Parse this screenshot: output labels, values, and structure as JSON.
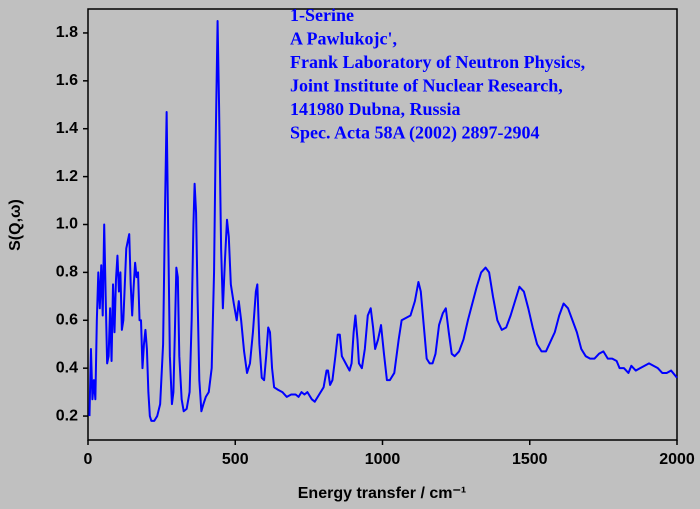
{
  "chart_data": {
    "type": "line",
    "xlabel": "Energy transfer / cm⁻¹",
    "ylabel": "S(Q,ω)",
    "annotations": [
      "1-Serine",
      "A Pawlukojc',",
      "Frank Laboratory of Neutron Physics,",
      "Joint Institute of Nuclear Research,",
      "141980 Dubna, Russia",
      "Spec. Acta 58A (2002) 2897-2904"
    ],
    "color": "#0000ff",
    "xlim": [
      0,
      2000
    ],
    "ylim": [
      0.1,
      1.9
    ],
    "xticks": [
      0,
      500,
      1000,
      1500,
      2000
    ],
    "yticks": [
      0.2,
      0.4,
      0.6,
      0.8,
      {
        "value": 1,
        "label": "1.0"
      },
      1.2,
      1.4,
      1.6,
      1.8
    ],
    "x": [
      5,
      10,
      15,
      20,
      25,
      30,
      35,
      40,
      45,
      50,
      55,
      60,
      65,
      70,
      75,
      80,
      85,
      90,
      95,
      100,
      105,
      110,
      115,
      120,
      125,
      130,
      135,
      140,
      145,
      150,
      155,
      160,
      165,
      170,
      175,
      180,
      185,
      190,
      195,
      200,
      205,
      210,
      215,
      225,
      235,
      245,
      255,
      262,
      267,
      272,
      278,
      285,
      290,
      295,
      300,
      305,
      310,
      318,
      325,
      335,
      345,
      352,
      358,
      362,
      367,
      372,
      378,
      385,
      392,
      400,
      410,
      420,
      428,
      433,
      440,
      445,
      452,
      458,
      465,
      472,
      478,
      485,
      495,
      505,
      512,
      520,
      530,
      540,
      550,
      560,
      570,
      575,
      582,
      590,
      598,
      605,
      612,
      618,
      625,
      632,
      645,
      660,
      675,
      690,
      705,
      715,
      725,
      735,
      745,
      760,
      770,
      785,
      800,
      810,
      815,
      822,
      830,
      840,
      848,
      855,
      862,
      875,
      888,
      895,
      902,
      908,
      915,
      920,
      930,
      940,
      950,
      960,
      968,
      975,
      985,
      995,
      1005,
      1015,
      1025,
      1040,
      1055,
      1065,
      1080,
      1095,
      1110,
      1122,
      1130,
      1140,
      1150,
      1160,
      1170,
      1180,
      1192,
      1205,
      1215,
      1225,
      1235,
      1245,
      1260,
      1275,
      1290,
      1305,
      1320,
      1335,
      1350,
      1362,
      1375,
      1390,
      1405,
      1420,
      1435,
      1450,
      1465,
      1480,
      1495,
      1510,
      1525,
      1540,
      1555,
      1570,
      1585,
      1600,
      1615,
      1630,
      1645,
      1660,
      1675,
      1690,
      1705,
      1720,
      1735,
      1750,
      1765,
      1780,
      1795,
      1805,
      1820,
      1835,
      1845,
      1860,
      1875,
      1890,
      1905,
      1920,
      1935,
      1950,
      1965,
      1980,
      2000
    ],
    "values": [
      0.2,
      0.48,
      0.27,
      0.35,
      0.27,
      0.6,
      0.8,
      0.65,
      0.83,
      0.62,
      1.0,
      0.7,
      0.42,
      0.45,
      0.65,
      0.43,
      0.75,
      0.55,
      0.77,
      0.87,
      0.72,
      0.8,
      0.56,
      0.6,
      0.75,
      0.9,
      0.93,
      0.96,
      0.75,
      0.62,
      0.74,
      0.84,
      0.78,
      0.8,
      0.6,
      0.6,
      0.4,
      0.5,
      0.56,
      0.48,
      0.3,
      0.2,
      0.18,
      0.18,
      0.2,
      0.25,
      0.5,
      1.1,
      1.47,
      1.0,
      0.45,
      0.25,
      0.3,
      0.55,
      0.82,
      0.78,
      0.45,
      0.27,
      0.22,
      0.23,
      0.3,
      0.6,
      1.0,
      1.17,
      1.05,
      0.7,
      0.35,
      0.22,
      0.25,
      0.28,
      0.3,
      0.4,
      0.8,
      1.3,
      1.85,
      1.5,
      0.9,
      0.65,
      0.85,
      1.02,
      0.95,
      0.75,
      0.67,
      0.6,
      0.68,
      0.6,
      0.47,
      0.38,
      0.42,
      0.55,
      0.72,
      0.75,
      0.5,
      0.36,
      0.35,
      0.45,
      0.57,
      0.55,
      0.4,
      0.32,
      0.31,
      0.3,
      0.28,
      0.29,
      0.29,
      0.28,
      0.3,
      0.29,
      0.3,
      0.27,
      0.26,
      0.29,
      0.32,
      0.39,
      0.39,
      0.33,
      0.35,
      0.45,
      0.54,
      0.54,
      0.45,
      0.42,
      0.39,
      0.42,
      0.55,
      0.62,
      0.52,
      0.42,
      0.4,
      0.48,
      0.62,
      0.65,
      0.57,
      0.48,
      0.52,
      0.58,
      0.46,
      0.35,
      0.35,
      0.38,
      0.52,
      0.6,
      0.61,
      0.62,
      0.68,
      0.76,
      0.72,
      0.58,
      0.44,
      0.42,
      0.42,
      0.46,
      0.58,
      0.63,
      0.65,
      0.55,
      0.46,
      0.45,
      0.47,
      0.52,
      0.6,
      0.67,
      0.74,
      0.8,
      0.82,
      0.8,
      0.7,
      0.6,
      0.56,
      0.57,
      0.62,
      0.68,
      0.74,
      0.72,
      0.65,
      0.57,
      0.5,
      0.47,
      0.47,
      0.51,
      0.55,
      0.62,
      0.67,
      0.65,
      0.6,
      0.55,
      0.48,
      0.45,
      0.44,
      0.44,
      0.46,
      0.47,
      0.44,
      0.44,
      0.43,
      0.4,
      0.4,
      0.38,
      0.41,
      0.39,
      0.4,
      0.41,
      0.42,
      0.41,
      0.4,
      0.38,
      0.38,
      0.39,
      0.36
    ]
  }
}
